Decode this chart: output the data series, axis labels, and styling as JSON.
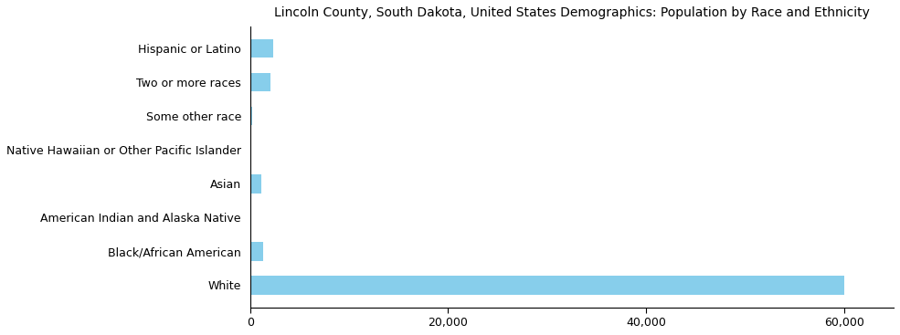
{
  "categories": [
    "White",
    "Black/African American",
    "American Indian and Alaska Native",
    "Asian",
    "Native Hawaiian or Other Pacific Islander",
    "Some other race",
    "Two or more races",
    "Hispanic or Latino"
  ],
  "values": [
    60000,
    1300,
    130,
    1100,
    60,
    200,
    2100,
    2300
  ],
  "bar_color": "#87CEEB",
  "title": "Lincoln County, South Dakota, United States Demographics: Population by Race and Ethnicity",
  "xlim": [
    0,
    65000
  ],
  "xticks": [
    0,
    20000,
    40000,
    60000
  ],
  "bar_height": 0.55,
  "figsize": [
    9.85,
    3.67
  ],
  "dpi": 100,
  "title_fontsize": 10,
  "tick_fontsize": 9,
  "label_fontsize": 9
}
